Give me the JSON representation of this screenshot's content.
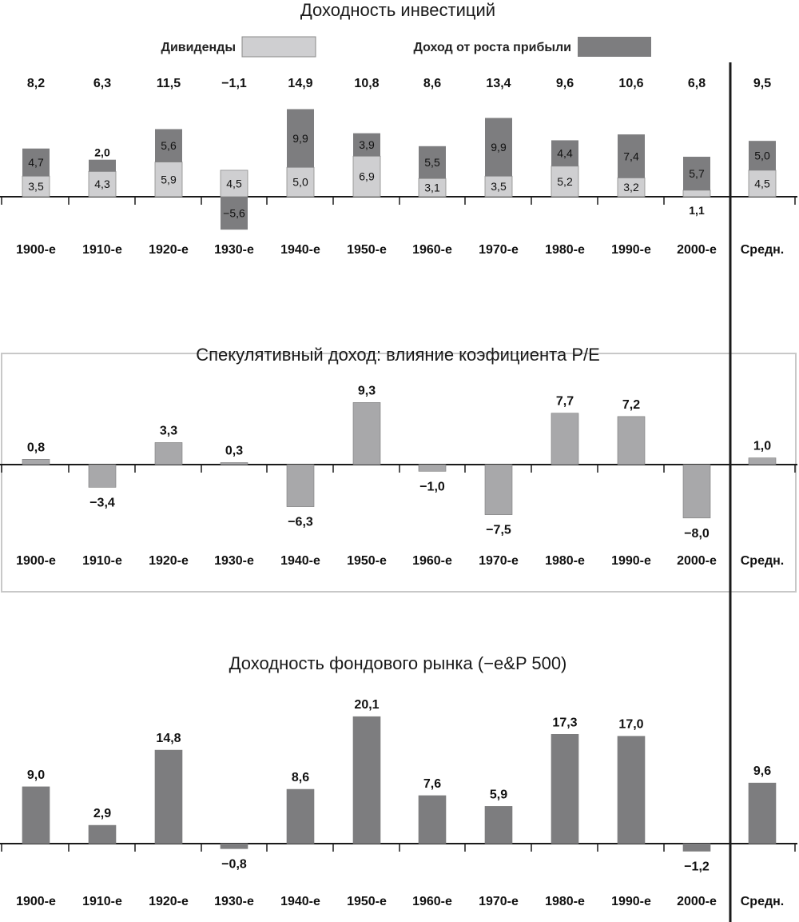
{
  "colors": {
    "dividends": "#cfcfd1",
    "earnings_growth": "#7d7d7f",
    "speculative": "#a8a8aa",
    "market": "#7d7d7f",
    "axis": "#1a1a1a",
    "frame": "#c8c8c8"
  },
  "chart_data": [
    {
      "type": "bar",
      "stacked": true,
      "title": "Доходность инвестиций",
      "categories": [
        "1900-е",
        "1910-е",
        "1920-е",
        "1930-е",
        "1940-е",
        "1950-е",
        "1960-е",
        "1970-е",
        "1980-е",
        "1990-е",
        "2000-е",
        "Средн."
      ],
      "totals": [
        "8,2",
        "6,3",
        "11,5",
        "−1,1",
        "14,9",
        "10,8",
        "8,6",
        "13,4",
        "9,6",
        "10,6",
        "6,8",
        "9,5"
      ],
      "series": [
        {
          "name": "Дивиденды",
          "values": [
            3.5,
            4.3,
            5.9,
            4.5,
            5.0,
            6.9,
            3.1,
            3.5,
            5.2,
            3.2,
            1.1,
            4.5
          ],
          "labels": [
            "3,5",
            "4,3",
            "5,9",
            "4,5",
            "5,0",
            "6,9",
            "3,1",
            "3,5",
            "5,2",
            "3,2",
            "1,1",
            "4,5"
          ]
        },
        {
          "name": "Доход от роста прибыли",
          "values": [
            4.7,
            2.0,
            5.6,
            -5.6,
            9.9,
            3.9,
            5.5,
            9.9,
            4.4,
            7.4,
            5.7,
            5.0
          ],
          "labels": [
            "4,7",
            "2,0",
            "5,6",
            "−5,6",
            "9,9",
            "3,9",
            "5,5",
            "9,9",
            "4,4",
            "7,4",
            "5,7",
            "5,0"
          ]
        }
      ],
      "legend": "top",
      "grid": false
    },
    {
      "type": "bar",
      "title": "Спекулятивный доход: влияние коэфициента P/E",
      "categories": [
        "1900-е",
        "1910-е",
        "1920-е",
        "1930-е",
        "1940-е",
        "1950-е",
        "1960-е",
        "1970-е",
        "1980-е",
        "1990-е",
        "2000-е",
        "Средн."
      ],
      "values": [
        0.8,
        -3.4,
        3.3,
        0.3,
        -6.3,
        9.3,
        -1.0,
        -7.5,
        7.7,
        7.2,
        -8.0,
        1.0
      ],
      "labels": [
        "0,8",
        "−3,4",
        "3,3",
        "0,3",
        "−6,3",
        "9,3",
        "−1,0",
        "−7,5",
        "7,7",
        "7,2",
        "−8,0",
        "1,0"
      ],
      "grid": false
    },
    {
      "type": "bar",
      "title": "Доходность фондового рынка (−e&P 500)",
      "categories": [
        "1900-е",
        "1910-е",
        "1920-е",
        "1930-е",
        "1940-е",
        "1950-е",
        "1960-е",
        "1970-е",
        "1980-е",
        "1990-е",
        "2000-е",
        "Средн."
      ],
      "values": [
        9.0,
        2.9,
        14.8,
        -0.8,
        8.6,
        20.1,
        7.6,
        5.9,
        17.3,
        17.0,
        -1.2,
        9.6
      ],
      "labels": [
        "9,0",
        "2,9",
        "14,8",
        "−0,8",
        "8,6",
        "20,1",
        "7,6",
        "5,9",
        "17,3",
        "17,0",
        "−1,2",
        "9,6"
      ],
      "grid": false
    }
  ]
}
